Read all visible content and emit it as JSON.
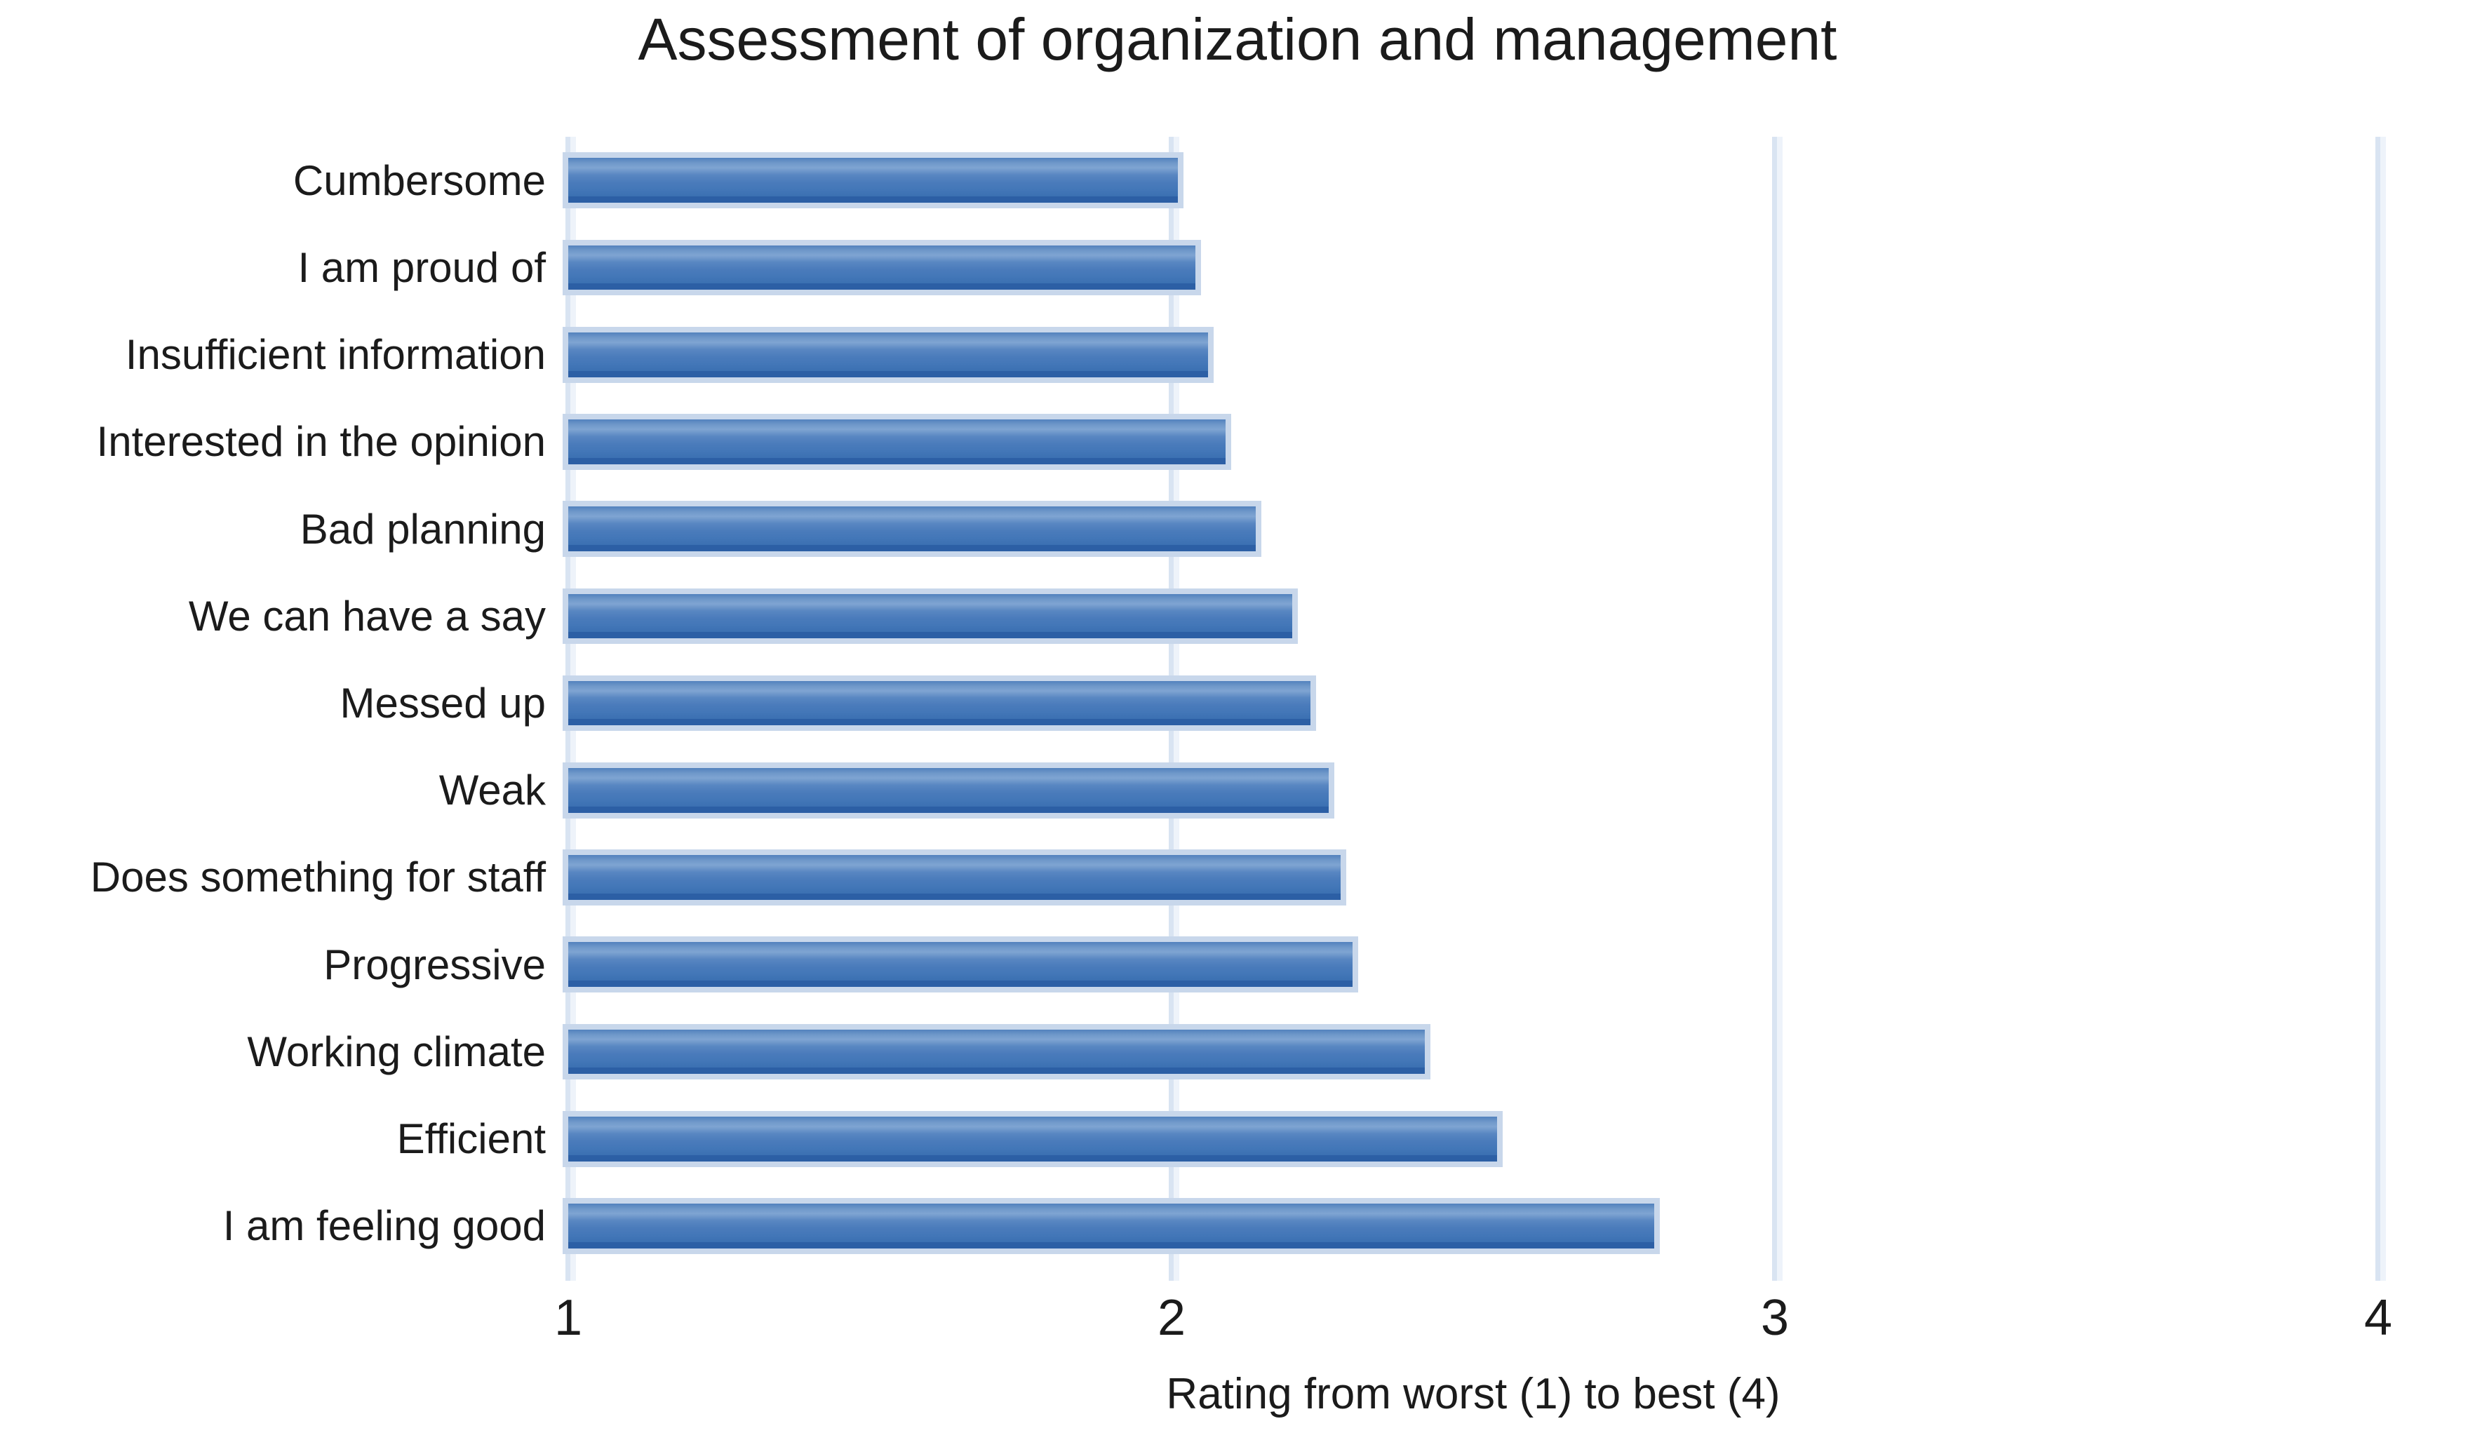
{
  "chart_data": {
    "type": "bar",
    "orientation": "horizontal",
    "title": "Assessment of organization and management",
    "xlabel": "Rating from worst (1) to best (4)",
    "categories": [
      "Cumbersome",
      "I am proud of",
      "Insufficient information",
      "Interested in the opinion",
      "Bad planning",
      "We can have a say",
      "Messed up",
      "Weak",
      "Does something for staff",
      "Progressive",
      "Working climate",
      "Efficient",
      "I am feeling good"
    ],
    "values": [
      2.01,
      2.04,
      2.06,
      2.09,
      2.14,
      2.2,
      2.23,
      2.26,
      2.28,
      2.3,
      2.42,
      2.54,
      2.8
    ],
    "xlim": [
      1,
      4
    ],
    "xticks": [
      1,
      2,
      3,
      4
    ],
    "grid": "vertical-only",
    "legend": "none",
    "colors": {
      "bar_fill_mid": "#4a7bbb",
      "bar_fill_highlight": "#7fa4d2",
      "bar_bottom_edge": "#2c5fa5",
      "bar_halo": "#c8d7eb",
      "gridline": "#d9e4f2",
      "text": "#1b1b1b",
      "background": "#ffffff"
    }
  }
}
